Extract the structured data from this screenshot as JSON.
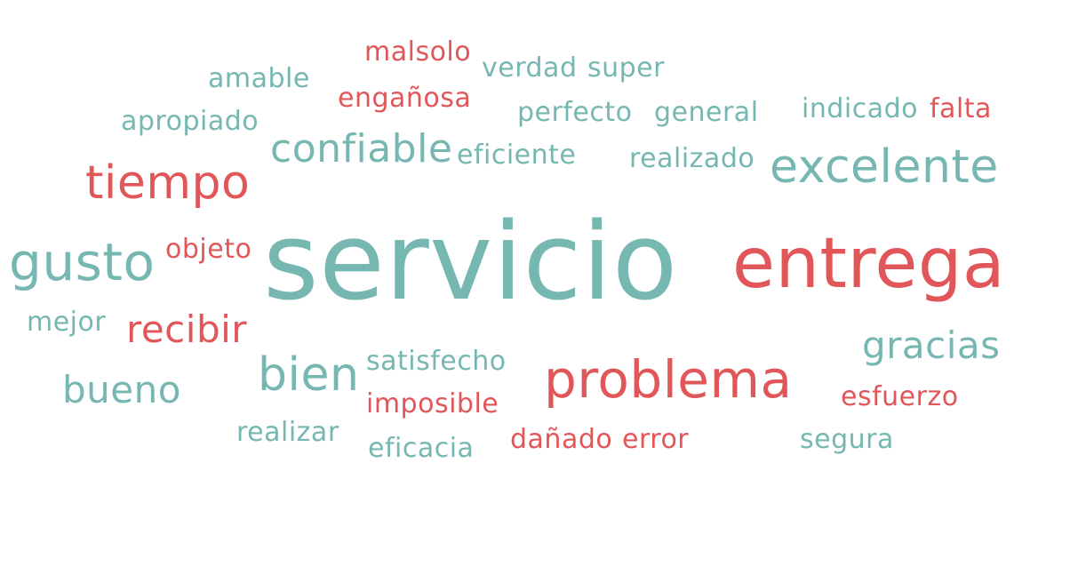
{
  "colors": {
    "positive": "#76b7b2",
    "negative": "#e15759"
  },
  "words": {
    "servicio": "servicio",
    "entrega": "entrega",
    "problema": "problema",
    "excelente": "excelente",
    "tiempo": "tiempo",
    "gusto": "gusto",
    "confiable": "confiable",
    "bien": "bien",
    "recibir": "recibir",
    "gracias": "gracias",
    "bueno": "bueno",
    "malsolo": "malsolo",
    "verdad": "verdad",
    "super": "super",
    "amable": "amable",
    "enganosa": "engañosa",
    "apropiado": "apropiado",
    "perfecto": "perfecto",
    "general": "general",
    "indicado": "indicado",
    "falta": "falta",
    "eficiente": "eficiente",
    "realizado": "realizado",
    "objeto": "objeto",
    "mejor": "mejor",
    "satisfecho": "satisfecho",
    "imposible": "imposible",
    "esfuerzo": "esfuerzo",
    "realizar": "realizar",
    "eficacia": "eficacia",
    "danado": "dañado",
    "error": "error",
    "segura": "segura"
  }
}
